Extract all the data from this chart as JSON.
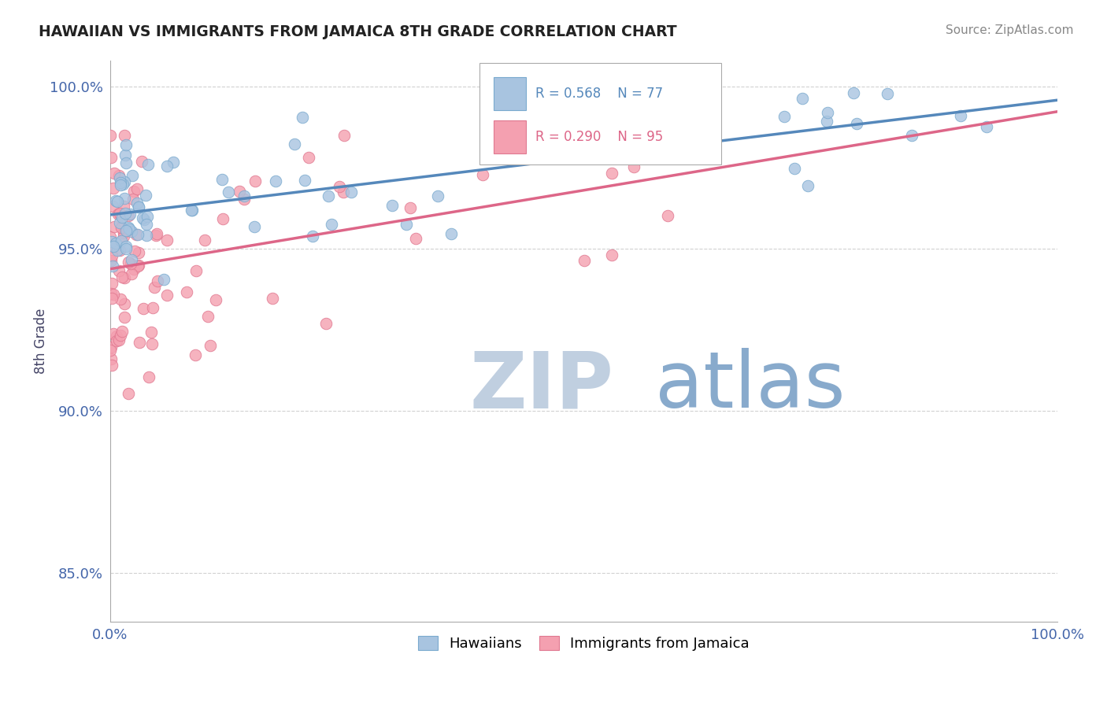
{
  "title": "HAWAIIAN VS IMMIGRANTS FROM JAMAICA 8TH GRADE CORRELATION CHART",
  "source_text": "Source: ZipAtlas.com",
  "ylabel": "8th Grade",
  "xlim": [
    0.0,
    1.0
  ],
  "ylim": [
    0.835,
    1.008
  ],
  "xticks": [
    0.0,
    0.1,
    0.2,
    0.3,
    0.4,
    0.5,
    0.6,
    0.7,
    0.8,
    0.9,
    1.0
  ],
  "xticklabels": [
    "0.0%",
    "",
    "",
    "",
    "",
    "",
    "",
    "",
    "",
    "",
    "100.0%"
  ],
  "yticks": [
    0.85,
    0.9,
    0.95,
    1.0
  ],
  "yticklabels": [
    "85.0%",
    "90.0%",
    "95.0%",
    "100.0%"
  ],
  "hawaiians_color": "#a8c4e0",
  "jamaicans_color": "#f4a0b0",
  "hawaiians_edge_color": "#7aaace",
  "jamaicans_edge_color": "#e07890",
  "hawaiians_line_color": "#5588bb",
  "jamaicans_line_color": "#dd6688",
  "legend_label_hawaiians": "Hawaiians",
  "legend_label_jamaicans": "Immigrants from Jamaica",
  "watermark_zip": "ZIP",
  "watermark_atlas": "atlas",
  "watermark_color_zip": "#c0cfe0",
  "watermark_color_atlas": "#88aacc",
  "background_color": "#ffffff",
  "grid_color": "#cccccc",
  "tick_color": "#4466aa",
  "ylabel_color": "#444466",
  "title_color": "#222222",
  "source_color": "#888888",
  "legend_text_color_haw": "#5588bb",
  "legend_text_color_jam": "#dd6688"
}
